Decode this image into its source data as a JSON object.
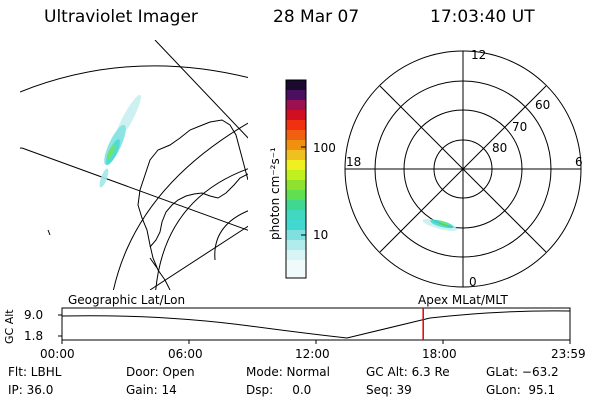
{
  "header": {
    "instrument": "Ultraviolet Imager",
    "date": "28 Mar 07",
    "time": "17:03:40 UT"
  },
  "colorbar": {
    "unit_label": "photon cm⁻²s⁻¹",
    "ticks": [
      "100",
      "10"
    ]
  },
  "polar_plot": {
    "mlt_labels": {
      "top": "12",
      "left": "18",
      "right": "6",
      "bottom": "0"
    },
    "lat_labels": [
      "60",
      "70",
      "80"
    ]
  },
  "timeline": {
    "left_label": "Geographic Lat/Lon",
    "right_label": "Apex MLat/MLT",
    "y_axis_label": "GC Alt",
    "y_ticks": [
      "9.0",
      "1.8"
    ],
    "x_ticks": [
      "00:00",
      "06:00",
      "12:00",
      "18:00",
      "23:59"
    ],
    "marker_time": "17:03:40",
    "marker_fraction": 0.711
  },
  "status": {
    "flt": "Flt: LBHL",
    "ip": "IP: 36.0",
    "door": "Door: Open",
    "gain": "Gain: 14",
    "mode": "Mode: Normal",
    "dsp": "Dsp:     0.0",
    "gc_alt": "GC Alt: 6.3 Re",
    "seq": "Seq: 39",
    "glat": "GLat: −63.2",
    "glon": "GLon:  95.1"
  },
  "colors": {
    "marker": "#e00000",
    "aurora_cyan": "#40d8d0",
    "aurora_green": "#60e060"
  }
}
